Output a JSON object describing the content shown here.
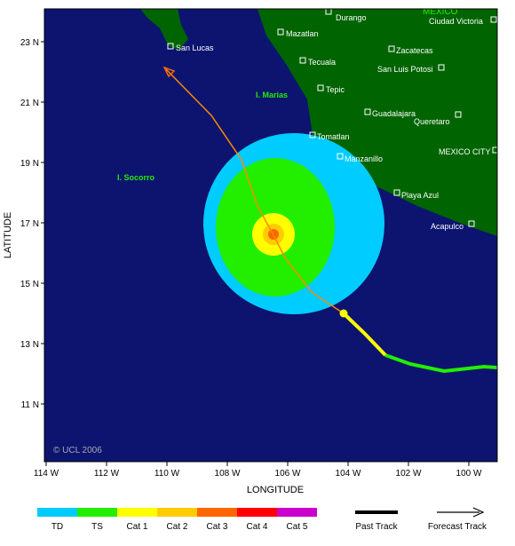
{
  "map": {
    "country": "MEXICO",
    "places": [
      "Durango",
      "Ciudad Victoria",
      "Mazatlan",
      "San Lucas",
      "Zacatecas",
      "Tecuala",
      "San Luis Potosi",
      "Tepic",
      "Guadalajara",
      "Queretaro",
      "Tomatlan",
      "MEXICO CITY",
      "Manzanillo",
      "Playa Azul",
      "Acapulco"
    ],
    "islands": [
      "I. Marias",
      "I. Socorro"
    ],
    "credit": "© UCL 2006",
    "lat_labels": [
      "23 N",
      "21 N",
      "19 N",
      "17 N",
      "15 N",
      "13 N",
      "11 N"
    ],
    "lon_labels": [
      "114 W",
      "112 W",
      "110 W",
      "108 W",
      "106 W",
      "104 W",
      "102 W",
      "100 W"
    ],
    "ylabel": "LATITUDE",
    "xlabel": "LONGITUDE"
  },
  "legend": {
    "categories": [
      {
        "label": "TD",
        "color": "#00ccff"
      },
      {
        "label": "TS",
        "color": "#22ee00"
      },
      {
        "label": "Cat 1",
        "color": "#ffff00"
      },
      {
        "label": "Cat 2",
        "color": "#ffcc00"
      },
      {
        "label": "Cat 3",
        "color": "#ff6600"
      },
      {
        "label": "Cat 4",
        "color": "#ff0000"
      },
      {
        "label": "Cat 5",
        "color": "#cc00cc"
      }
    ],
    "past": "Past Track",
    "forecast": "Forecast Track"
  }
}
